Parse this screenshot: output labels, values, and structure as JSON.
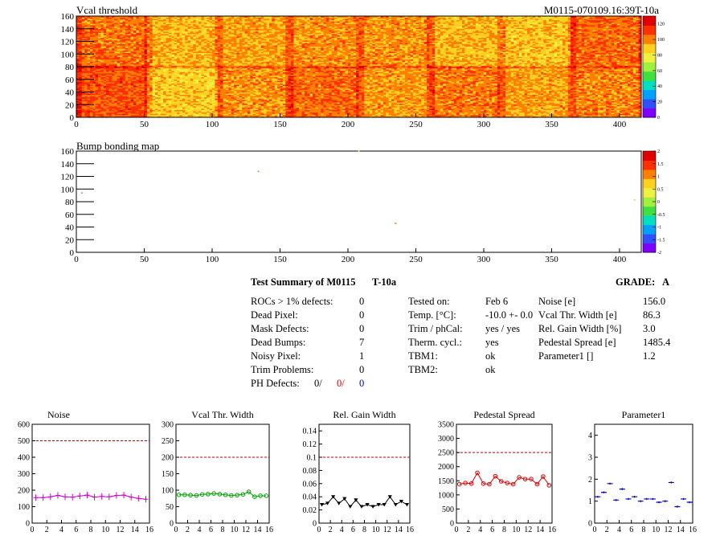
{
  "page": {
    "header_right": "M0115-070109.16:39T-10a"
  },
  "chart_data": [
    {
      "type": "heatmap",
      "title": "Vcal threshold",
      "xlim": [
        0,
        416
      ],
      "ylim": [
        0,
        160
      ],
      "x_ticks": [
        0,
        50,
        100,
        150,
        200,
        250,
        300,
        350,
        400
      ],
      "y_ticks": [
        0,
        20,
        40,
        60,
        80,
        100,
        120,
        140,
        160
      ],
      "z_range": [
        0,
        130
      ],
      "z_ticks": [
        0,
        20,
        40,
        60,
        80,
        100,
        120
      ],
      "roc_grid": {
        "columns": 8,
        "rows": 2,
        "roc_width": 52,
        "roc_height": 80
      },
      "roc_mean_levels": {
        "top_row": [
          103,
          92,
          96,
          98,
          98,
          92,
          90,
          104
        ],
        "bottom_row": [
          108,
          88,
          98,
          104,
          97,
          102,
          96,
          100
        ]
      },
      "colors": [
        "#8000ff",
        "#3050ff",
        "#00a0ff",
        "#00e0c0",
        "#40e040",
        "#a0f040",
        "#f0f040",
        "#ffd020",
        "#ff8000",
        "#ff3000",
        "#e00000"
      ]
    },
    {
      "type": "heatmap",
      "title": "Bump bonding map",
      "xlim": [
        0,
        416
      ],
      "ylim": [
        0,
        160
      ],
      "x_ticks": [
        0,
        50,
        100,
        150,
        200,
        250,
        300,
        350,
        400
      ],
      "y_ticks": [
        0,
        20,
        40,
        60,
        80,
        100,
        120,
        140,
        160
      ],
      "z_range": [
        -2,
        2
      ],
      "z_ticks": [
        -2,
        -1.5,
        -1,
        -0.5,
        0,
        0.5,
        1,
        1.5,
        2
      ],
      "points": [
        {
          "x": 208,
          "y": 160,
          "z": 0.3
        },
        {
          "x": 134,
          "y": 128,
          "z": -0.5
        },
        {
          "x": 4,
          "y": 94,
          "z": -0.3
        },
        {
          "x": 235,
          "y": 46,
          "z": 1.2
        },
        {
          "x": 411,
          "y": 83,
          "z": 0.0
        }
      ]
    },
    {
      "type": "scatter",
      "title": "Noise",
      "xlim": [
        0,
        16
      ],
      "ylim": [
        0,
        600
      ],
      "x_ticks": [
        0,
        2,
        4,
        6,
        8,
        10,
        12,
        14,
        16
      ],
      "y_ticks": [
        0,
        100,
        200,
        300,
        400,
        500,
        600
      ],
      "reference_line": 500,
      "color": "#d000d0",
      "marker": "cross",
      "values": [
        155,
        155,
        160,
        168,
        160,
        158,
        165,
        170,
        158,
        162,
        160,
        168,
        170,
        158,
        150,
        145
      ]
    },
    {
      "type": "scatter",
      "title": "Vcal Thr. Width",
      "xlim": [
        0,
        16
      ],
      "ylim": [
        0,
        300
      ],
      "x_ticks": [
        0,
        2,
        4,
        6,
        8,
        10,
        12,
        14,
        16
      ],
      "y_ticks": [
        0,
        50,
        100,
        150,
        200,
        250,
        300
      ],
      "reference_line": 200,
      "color": "#00a000",
      "marker": "circle",
      "values": [
        86,
        86,
        85,
        84,
        87,
        88,
        90,
        88,
        86,
        84,
        85,
        87,
        95,
        80,
        83,
        83
      ]
    },
    {
      "type": "scatter",
      "title": "Rel. Gain Width",
      "xlim": [
        0,
        16
      ],
      "ylim": [
        0,
        0.15
      ],
      "x_ticks": [
        0,
        2,
        4,
        6,
        8,
        10,
        12,
        14,
        16
      ],
      "y_ticks": [
        0,
        0.02,
        0.04,
        0.06,
        0.08,
        0.1,
        0.12,
        0.14
      ],
      "reference_line": 0.1,
      "color": "#000000",
      "marker": "triangle-down",
      "values": [
        0.028,
        0.03,
        0.04,
        0.03,
        0.037,
        0.025,
        0.035,
        0.025,
        0.028,
        0.025,
        0.028,
        0.028,
        0.04,
        0.028,
        0.033,
        0.028
      ]
    },
    {
      "type": "scatter",
      "title": "Pedestal Spread",
      "xlim": [
        0,
        16
      ],
      "ylim": [
        0,
        3500
      ],
      "x_ticks": [
        0,
        2,
        4,
        6,
        8,
        10,
        12,
        14,
        16
      ],
      "y_ticks": [
        0,
        500,
        1000,
        1500,
        2000,
        2500,
        3000,
        3500
      ],
      "reference_line": 2500,
      "color": "#e00000",
      "marker": "circle",
      "values": [
        1380,
        1420,
        1400,
        1780,
        1400,
        1380,
        1660,
        1480,
        1420,
        1380,
        1620,
        1560,
        1560,
        1380,
        1650,
        1340
      ]
    },
    {
      "type": "scatter",
      "title": "Parameter1",
      "xlim": [
        0,
        16
      ],
      "ylim": [
        0,
        4.5
      ],
      "x_ticks": [
        0,
        2,
        4,
        6,
        8,
        10,
        12,
        14,
        16
      ],
      "y_ticks": [
        0,
        1,
        2,
        3,
        4
      ],
      "reference_line": null,
      "color": "#0000c0",
      "marker": "bar",
      "values": [
        1.2,
        1.4,
        1.8,
        1.05,
        1.55,
        1.1,
        1.2,
        1.0,
        1.1,
        1.1,
        0.95,
        1.0,
        1.85,
        0.75,
        1.1,
        0.95
      ]
    }
  ],
  "summary": {
    "title": "Test Summary of M0115",
    "title_temp": "T-10a",
    "grade_label": "GRADE:",
    "grade_value": "A",
    "left": [
      {
        "label": "ROCs > 1% defects:",
        "value": "0"
      },
      {
        "label": "Dead Pixel:",
        "value": "0"
      },
      {
        "label": "Mask Defects:",
        "value": "0"
      },
      {
        "label": "Dead Bumps:",
        "value": "7"
      },
      {
        "label": "Noisy Pixel:",
        "value": "1"
      },
      {
        "label": "Trim Problems:",
        "value": "0"
      }
    ],
    "ph_defects": {
      "label": "PH Defects:",
      "v1": "0/",
      "v2": "0/",
      "v3": "0"
    },
    "middle": [
      {
        "label": "Tested on:",
        "value": "Feb 6"
      },
      {
        "label": "Temp. [°C]:",
        "value": "-10.0 +- 0.0"
      },
      {
        "label": "Trim / phCal:",
        "value": "yes / yes"
      },
      {
        "label": "Therm. cycl.:",
        "value": "yes"
      },
      {
        "label": "TBM1:",
        "value": "ok"
      },
      {
        "label": "TBM2:",
        "value": "ok"
      }
    ],
    "right": [
      {
        "label": "Noise [e]",
        "value": "156.0"
      },
      {
        "label": "Vcal Thr. Width [e]",
        "value": "86.3"
      },
      {
        "label": "Rel. Gain Width [%]",
        "value": "3.0"
      },
      {
        "label": "Pedestal Spread [e]",
        "value": "1485.4"
      },
      {
        "label": "Parameter1 []",
        "value": "1.2"
      }
    ]
  }
}
